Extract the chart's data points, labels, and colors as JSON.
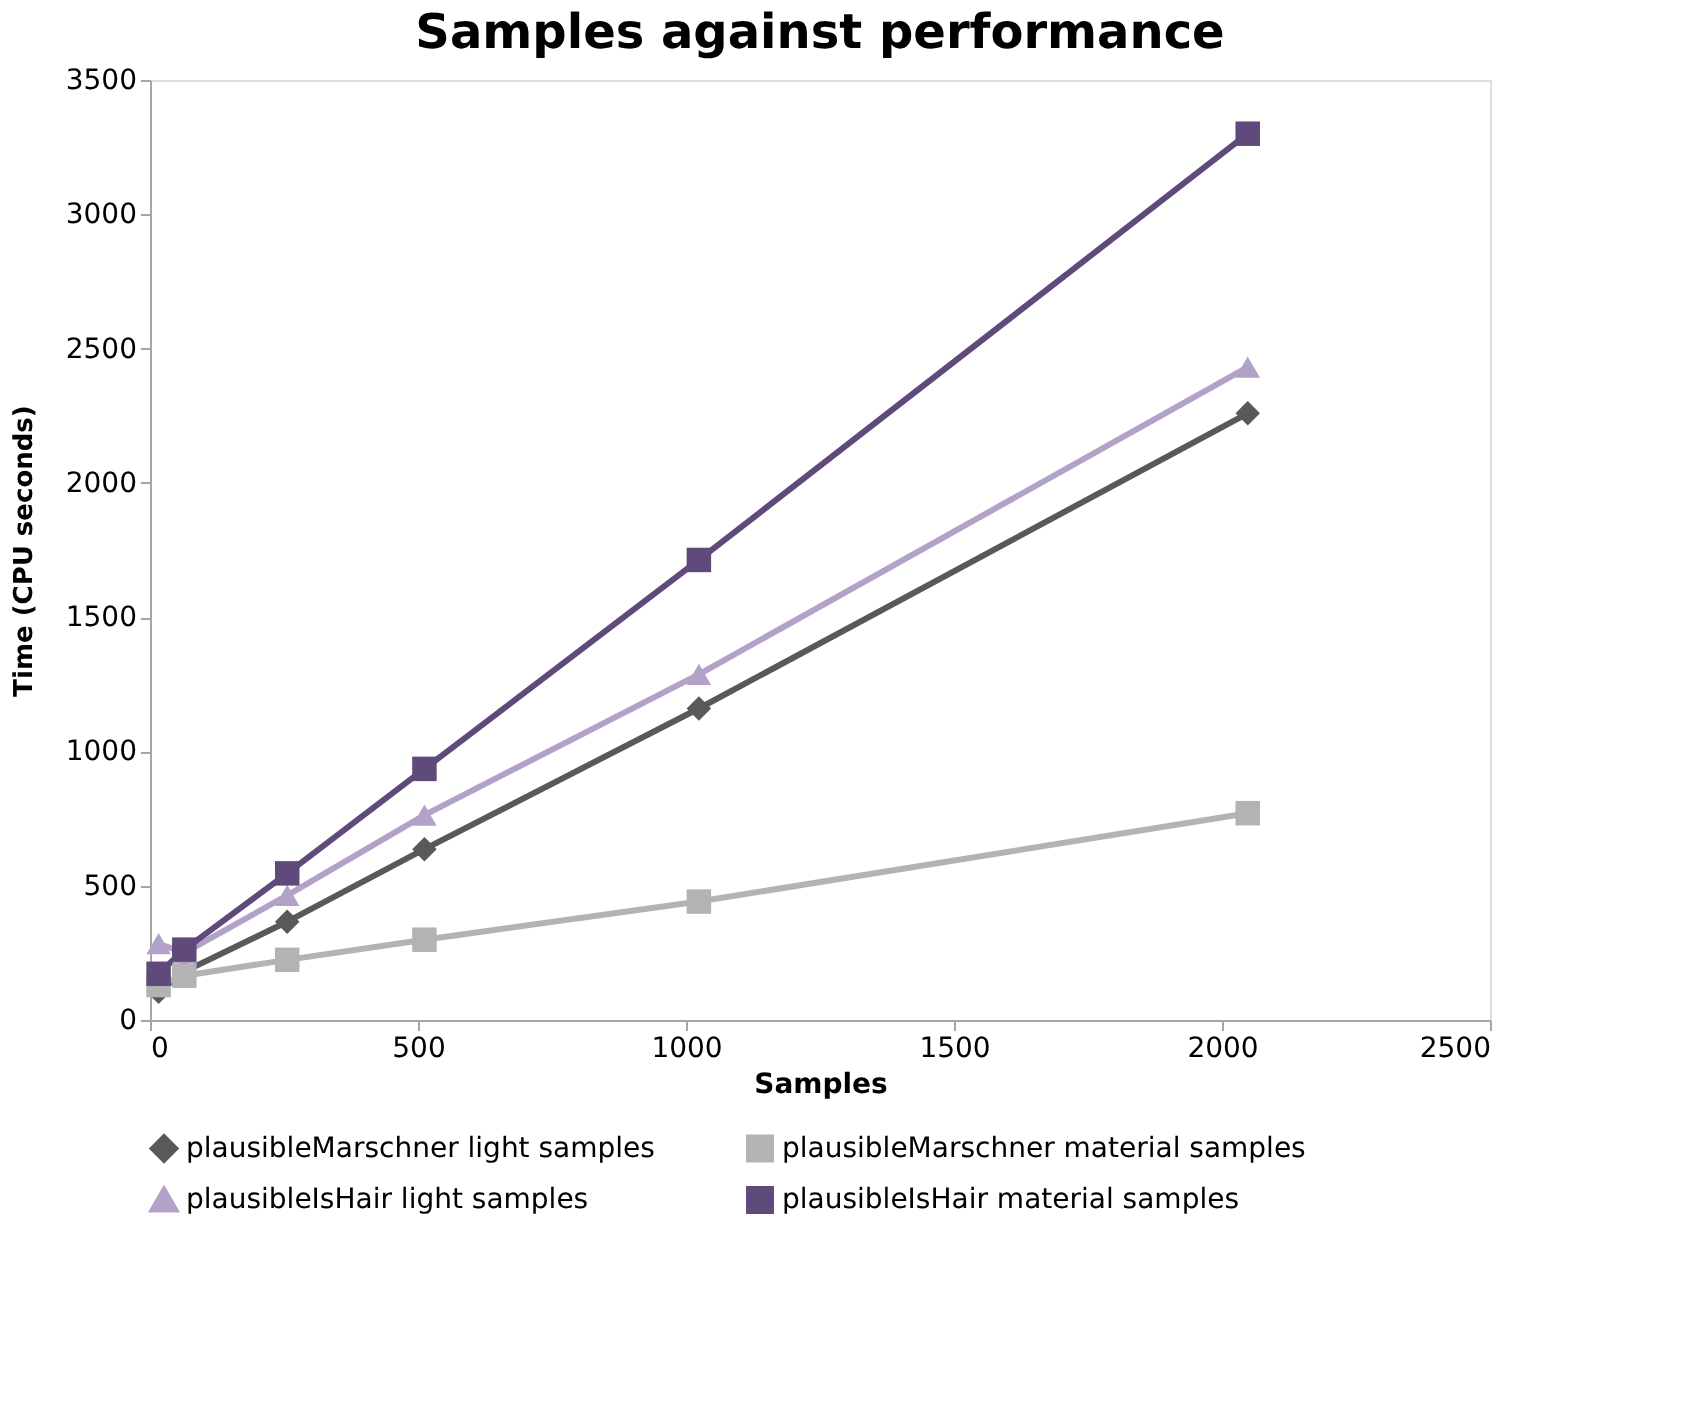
{
  "chart_data": {
    "type": "line",
    "title": "Samples against performance",
    "xlabel": "Samples",
    "ylabel": "Time (CPU seconds)",
    "x": [
      16,
      64,
      256,
      512,
      1024,
      2048
    ],
    "series": [
      {
        "name": "plausibleMarschner light samples",
        "color": "#595959",
        "marker": "diamond",
        "values": [
          105,
          180,
          366,
          636,
          1160,
          2259
        ]
      },
      {
        "name": "plausibleMarschner material samples",
        "color": "#b3b3b3",
        "marker": "square",
        "values": [
          130,
          165,
          224,
          299,
          441,
          770
        ]
      },
      {
        "name": "plausibleIsHair light samples",
        "color": "#b3a2c7",
        "marker": "triangle",
        "values": [
          284,
          250,
          464,
          763,
          1287,
          2431
        ]
      },
      {
        "name": "plausibleIsHair material samples",
        "color": "#604a7b",
        "marker": "square",
        "values": [
          172,
          262,
          546,
          935,
          1713,
          3300
        ]
      }
    ],
    "xlim": [
      0,
      2500
    ],
    "xticks": [
      0,
      500,
      1000,
      1500,
      2000,
      2500
    ],
    "ylim": [
      0,
      3500
    ],
    "yticks": [
      0,
      500,
      1000,
      1500,
      2000,
      2500,
      3000,
      3500
    ],
    "grid": false,
    "legend": "bottom",
    "line_style": "solid"
  }
}
